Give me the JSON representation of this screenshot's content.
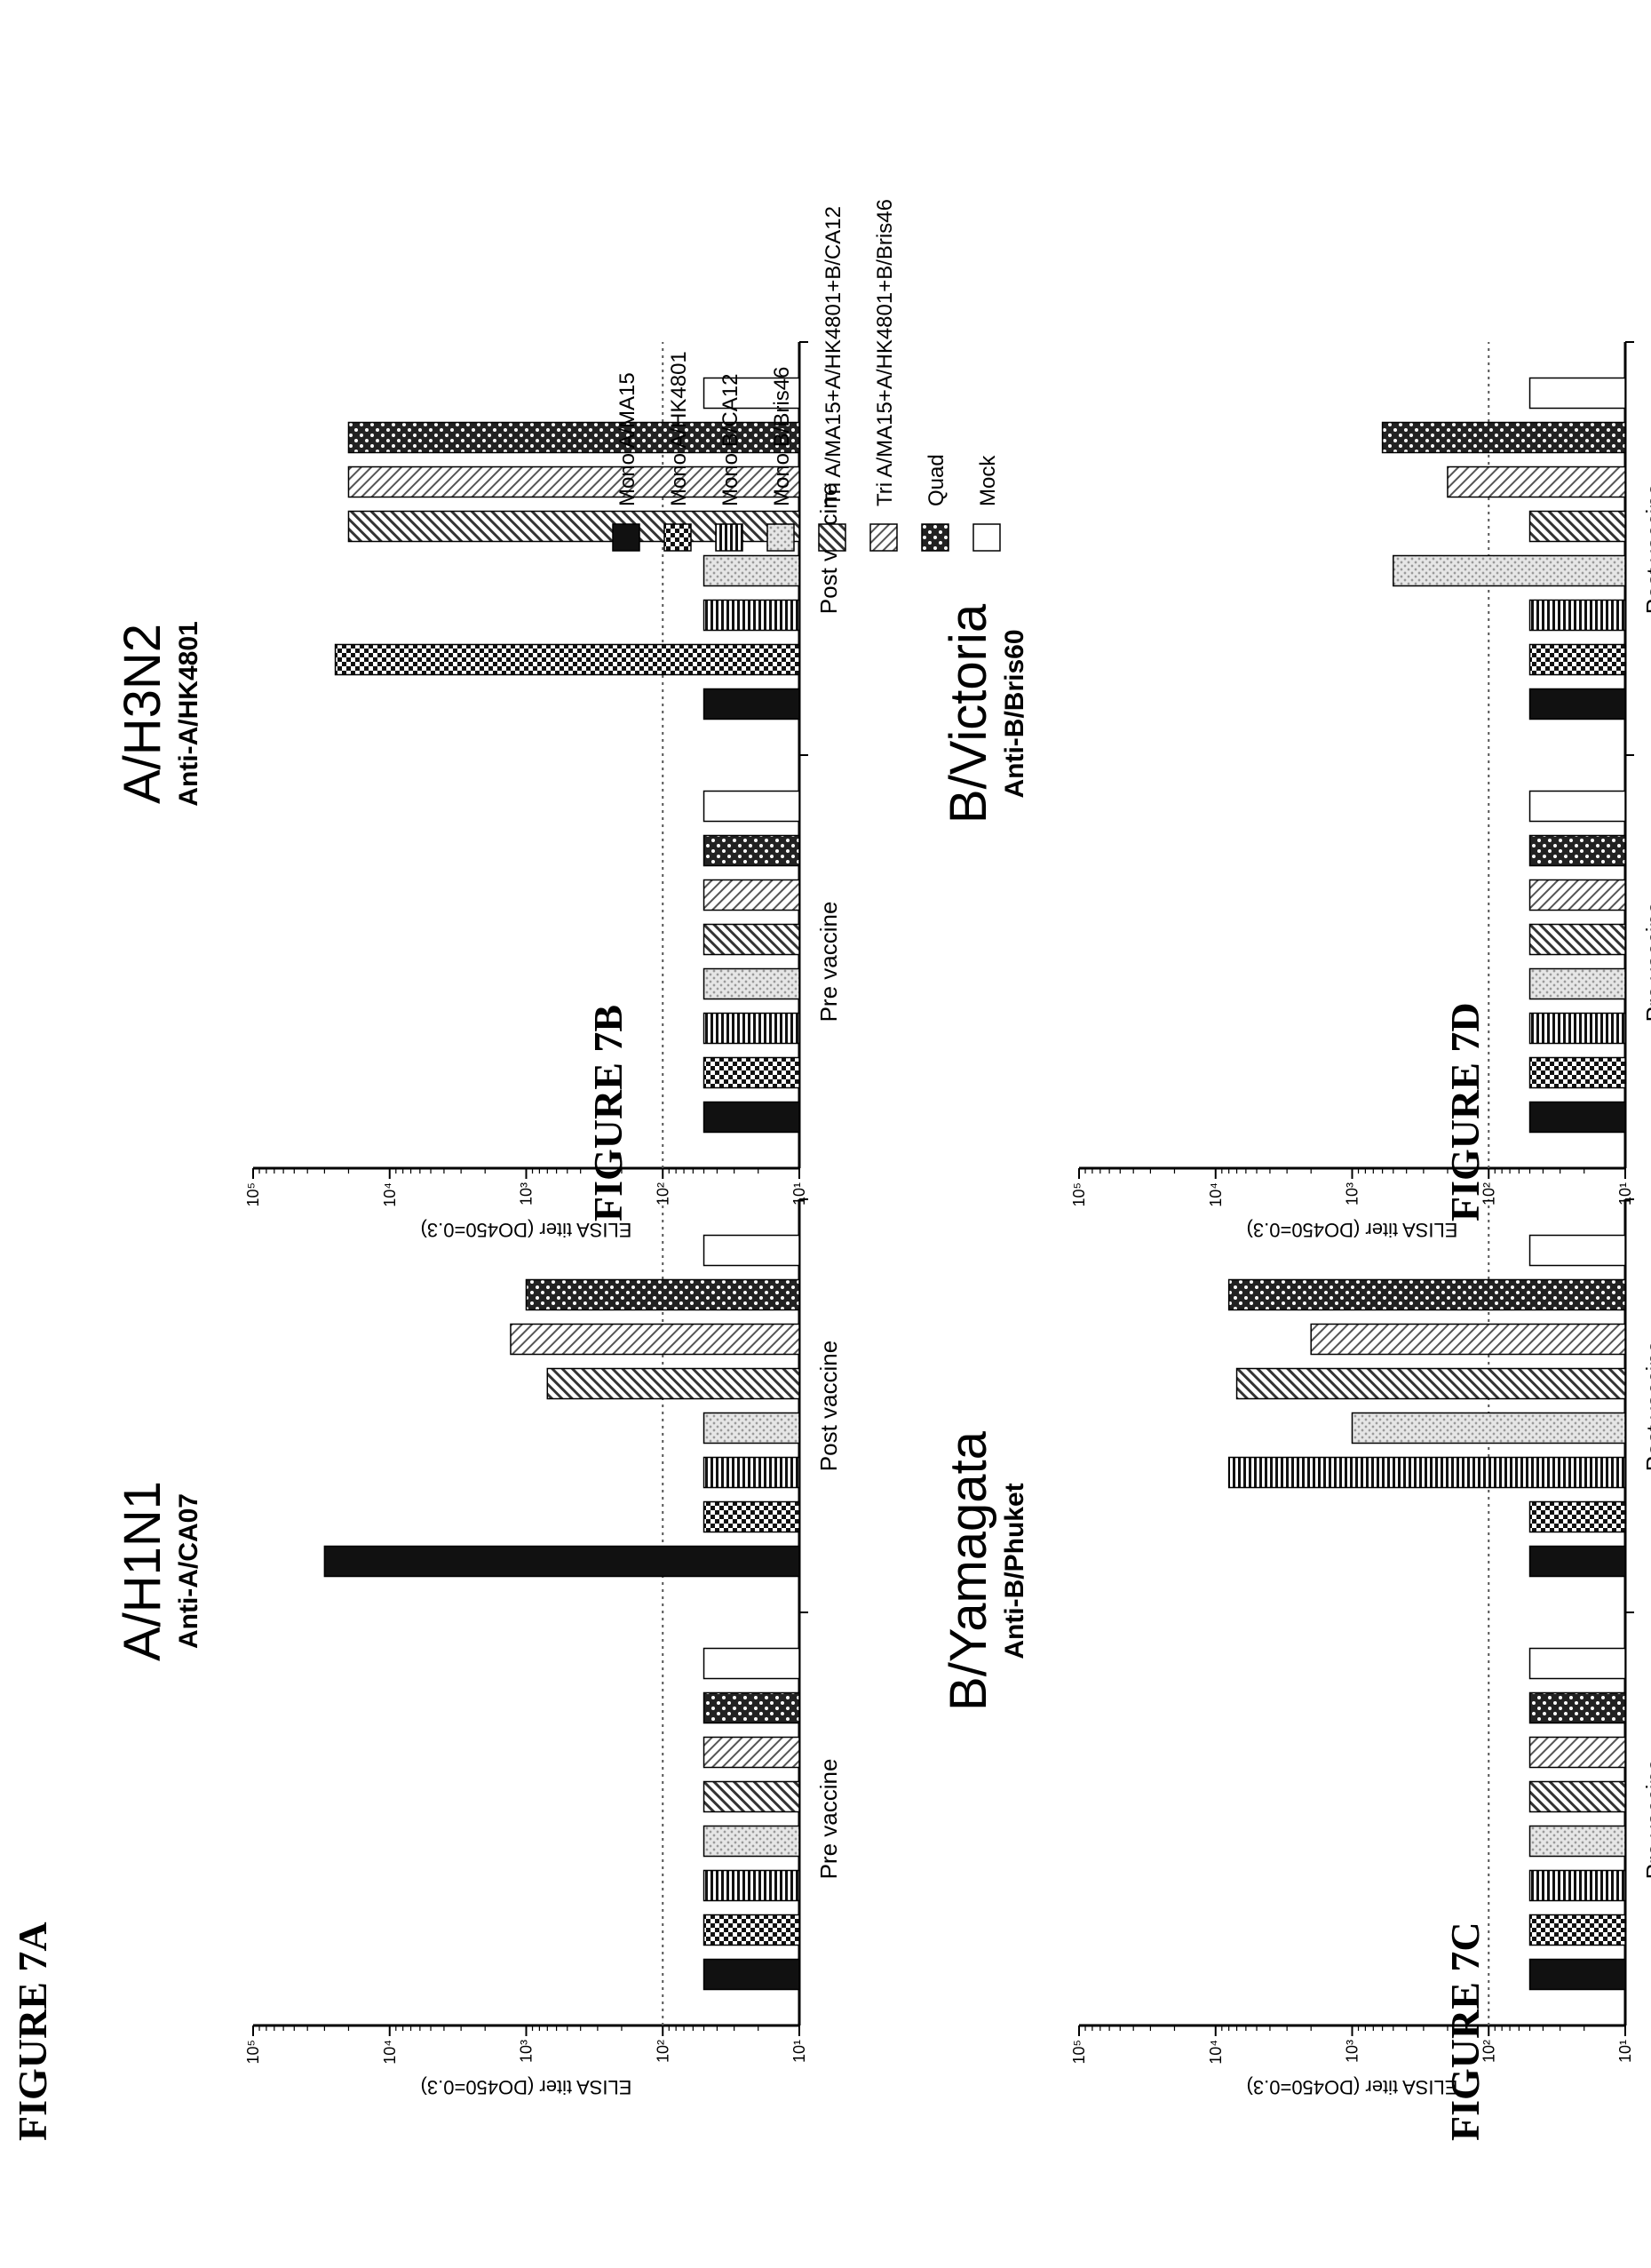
{
  "figure_labels": [
    "FIGURE 7A",
    "FIGURE 7B",
    "FIGURE 7C",
    "FIGURE 7D"
  ],
  "legend": [
    {
      "label": "Mono A/MA15",
      "pattern": "solid"
    },
    {
      "label": "Mono A/HK4801",
      "pattern": "checker"
    },
    {
      "label": "Mono B/CA12",
      "pattern": "vlines"
    },
    {
      "label": "Mono B/Bris46",
      "pattern": "lightdots"
    },
    {
      "label": "Tri A/MA15+A/HK4801+B/CA12",
      "pattern": "diag"
    },
    {
      "label": "Tri A/MA15+A/HK4801+B/Bris46",
      "pattern": "diag2"
    },
    {
      "label": "Quad",
      "pattern": "checker2"
    },
    {
      "label": "Mock",
      "pattern": "empty"
    }
  ],
  "chart_data": [
    {
      "type": "bar",
      "figure": "FIGURE 7A",
      "title": "A/H1N1",
      "subtitle": "Anti-A/CA07",
      "ylabel": "ELISA titer (DO450=0.3)",
      "yscale": "log",
      "ylim": [
        10,
        100000
      ],
      "yticks": [
        "10⁵",
        "10⁴",
        "10³",
        "10²",
        "10¹"
      ],
      "categories": [
        "Pre vaccine",
        "Post vaccine"
      ],
      "reference_line": 100,
      "series": [
        {
          "name": "Mono A/MA15",
          "values": [
            50,
            30000
          ]
        },
        {
          "name": "Mono A/HK4801",
          "values": [
            50,
            50
          ]
        },
        {
          "name": "Mono B/CA12",
          "values": [
            50,
            50
          ]
        },
        {
          "name": "Mono B/Bris46",
          "values": [
            50,
            50
          ]
        },
        {
          "name": "Tri A/MA15+A/HK4801+B/CA12",
          "values": [
            50,
            700
          ]
        },
        {
          "name": "Tri A/MA15+A/HK4801+B/Bris46",
          "values": [
            50,
            1300
          ]
        },
        {
          "name": "Quad",
          "values": [
            50,
            1000
          ]
        },
        {
          "name": "Mock",
          "values": [
            50,
            50
          ]
        }
      ]
    },
    {
      "type": "bar",
      "figure": "FIGURE 7B",
      "title": "A/H3N2",
      "subtitle": "Anti-A/HK4801",
      "ylabel": "ELISA titer (DO450=0.3)",
      "yscale": "log",
      "ylim": [
        10,
        100000
      ],
      "yticks": [
        "10⁵",
        "10⁴",
        "10³",
        "10²",
        "10¹"
      ],
      "categories": [
        "Pre vaccine",
        "Post vaccine"
      ],
      "reference_line": 100,
      "series": [
        {
          "name": "Mono A/MA15",
          "values": [
            50,
            50
          ]
        },
        {
          "name": "Mono A/HK4801",
          "values": [
            50,
            25000
          ]
        },
        {
          "name": "Mono B/CA12",
          "values": [
            50,
            50
          ]
        },
        {
          "name": "Mono B/Bris46",
          "values": [
            50,
            50
          ]
        },
        {
          "name": "Tri A/MA15+A/HK4801+B/CA12",
          "values": [
            50,
            20000
          ]
        },
        {
          "name": "Tri A/MA15+A/HK4801+B/Bris46",
          "values": [
            50,
            20000
          ]
        },
        {
          "name": "Quad",
          "values": [
            50,
            20000
          ]
        },
        {
          "name": "Mock",
          "values": [
            50,
            50
          ]
        }
      ]
    },
    {
      "type": "bar",
      "figure": "FIGURE 7C",
      "title": "B/Yamagata",
      "subtitle": "Anti-B/Phuket",
      "ylabel": "ELISA titer (DO450=0.3)",
      "yscale": "log",
      "ylim": [
        10,
        100000
      ],
      "yticks": [
        "10⁵",
        "10⁴",
        "10³",
        "10²",
        "10¹"
      ],
      "categories": [
        "Pre vaccine",
        "Post vaccine"
      ],
      "reference_line": 100,
      "series": [
        {
          "name": "Mono A/MA15",
          "values": [
            50,
            50
          ]
        },
        {
          "name": "Mono A/HK4801",
          "values": [
            50,
            50
          ]
        },
        {
          "name": "Mono B/CA12",
          "values": [
            50,
            8000
          ]
        },
        {
          "name": "Mono B/Bris46",
          "values": [
            50,
            1000
          ]
        },
        {
          "name": "Tri A/MA15+A/HK4801+B/CA12",
          "values": [
            50,
            7000
          ]
        },
        {
          "name": "Tri A/MA15+A/HK4801+B/Bris46",
          "values": [
            50,
            2000
          ]
        },
        {
          "name": "Quad",
          "values": [
            50,
            8000
          ]
        },
        {
          "name": "Mock",
          "values": [
            50,
            50
          ]
        }
      ]
    },
    {
      "type": "bar",
      "figure": "FIGURE 7D",
      "title": "B/Victoria",
      "subtitle": "Anti-B/Bris60",
      "ylabel": "ELISA titer (DO450=0.3)",
      "yscale": "log",
      "ylim": [
        10,
        100000
      ],
      "yticks": [
        "10⁵",
        "10⁴",
        "10³",
        "10²",
        "10¹"
      ],
      "categories": [
        "Pre vaccine",
        "Post vaccine"
      ],
      "reference_line": 100,
      "series": [
        {
          "name": "Mono A/MA15",
          "values": [
            50,
            50
          ]
        },
        {
          "name": "Mono A/HK4801",
          "values": [
            50,
            50
          ]
        },
        {
          "name": "Mono B/CA12",
          "values": [
            50,
            50
          ]
        },
        {
          "name": "Mono B/Bris46",
          "values": [
            50,
            500
          ]
        },
        {
          "name": "Tri A/MA15+A/HK4801+B/CA12",
          "values": [
            50,
            50
          ]
        },
        {
          "name": "Tri A/MA15+A/HK4801+B/Bris46",
          "values": [
            50,
            200
          ]
        },
        {
          "name": "Quad",
          "values": [
            50,
            600
          ]
        },
        {
          "name": "Mock",
          "values": [
            50,
            50
          ]
        }
      ]
    }
  ]
}
